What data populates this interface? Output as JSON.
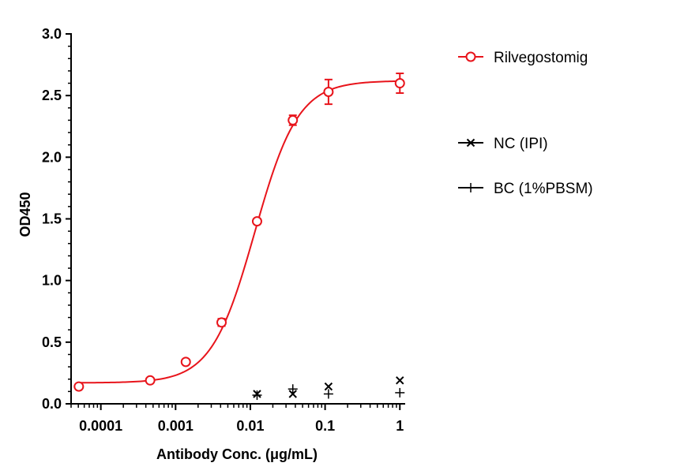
{
  "chart_data": {
    "type": "scatter",
    "title": "",
    "xlabel": "Antibody Conc. (μg/mL)",
    "ylabel": "OD450",
    "xscale": "log",
    "xlim": [
      4e-05,
      1.15
    ],
    "ylim": [
      0,
      3.0
    ],
    "grid": false,
    "legend_placement": "right",
    "x_ticks": [
      0.0001,
      0.001,
      0.01,
      0.1,
      1
    ],
    "x_tick_labels": [
      "0.0001",
      "0.001",
      "0.01",
      "0.1",
      "1"
    ],
    "y_ticks": [
      0,
      0.5,
      1.0,
      1.5,
      2.0,
      2.5,
      3.0
    ],
    "y_tick_labels": [
      "0.0",
      "0.5",
      "1.0",
      "1.5",
      "2.0",
      "2.5",
      "3.0"
    ],
    "series": [
      {
        "name": "Rilvegostomig",
        "color": "#e8141b",
        "marker": "circle-open",
        "x": [
          5.08e-05,
          0.000457,
          0.00137,
          0.00412,
          0.0123,
          0.037,
          0.111,
          1
        ],
        "y": [
          0.14,
          0.19,
          0.34,
          0.66,
          1.48,
          2.3,
          2.53,
          2.6
        ],
        "err": [
          0.0,
          0.0,
          0.0,
          0.03,
          0.02,
          0.04,
          0.1,
          0.08
        ],
        "fit": "4PL",
        "fit_params": {
          "bottom": 0.17,
          "top": 2.62,
          "ec50": 0.0115,
          "hill": 1.5
        }
      },
      {
        "name": "NC (IPI)",
        "color": "#000000",
        "marker": "x",
        "x": [
          0.0123,
          0.037,
          0.111,
          1
        ],
        "y": [
          0.08,
          0.08,
          0.14,
          0.19
        ],
        "err": [
          0.0,
          0.0,
          0.0,
          0.0
        ]
      },
      {
        "name": "BC (1%PBSM)",
        "color": "#000000",
        "marker": "plus",
        "x": [
          0.0123,
          0.037,
          0.111,
          1
        ],
        "y": [
          0.07,
          0.12,
          0.08,
          0.09
        ],
        "err": [
          0.0,
          0.0,
          0.0,
          0.0
        ]
      }
    ]
  }
}
